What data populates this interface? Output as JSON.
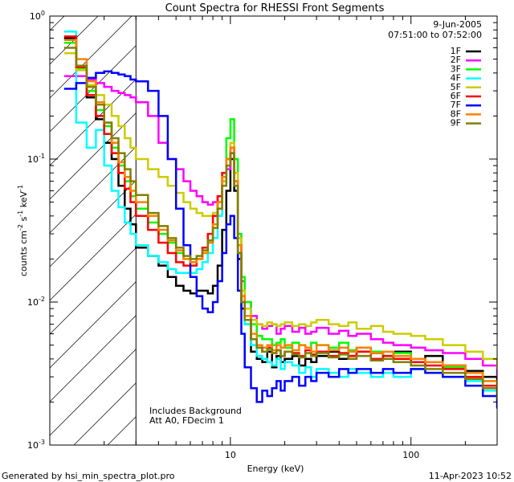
{
  "chart_data": {
    "type": "line",
    "title": "Count Spectra for RHESSI Front Segments",
    "xlabel": "Energy (keV)",
    "ylabel_parts": [
      "counts cm",
      "-2",
      " s",
      "-1",
      " keV",
      "-1"
    ],
    "x_scale": "log",
    "y_scale": "log",
    "xlim": [
      1.0,
      300
    ],
    "ylim": [
      0.001,
      1.0
    ],
    "x_ticks": [
      {
        "value": 10,
        "label": "10"
      },
      {
        "value": 100,
        "label": "100"
      }
    ],
    "y_ticks": [
      {
        "value": 1.0,
        "label": "10",
        "exp": "0"
      },
      {
        "value": 0.1,
        "label": "10",
        "exp": "-1"
      },
      {
        "value": 0.01,
        "label": "10",
        "exp": "-2"
      },
      {
        "value": 0.001,
        "label": "10",
        "exp": "-3"
      }
    ],
    "hatch_region_max_kev": 3.0,
    "annotations": {
      "date": "9-Jun-2005",
      "time_range": "07:51:00 to 07:52:00",
      "note1": "Includes Background",
      "note2": "Att A0, FDecim 1"
    },
    "footer_left": "Generated by hsi_min_spectra_plot.pro",
    "footer_right": "11-Apr-2023 10:52",
    "series": [
      {
        "name": "1F",
        "color": "#000000",
        "x": [
          1.2,
          1.4,
          1.6,
          1.8,
          2.0,
          2.2,
          2.4,
          2.6,
          2.8,
          3.0,
          3.5,
          4,
          4.5,
          5,
          5.5,
          6,
          6.5,
          7,
          7.5,
          8,
          8.5,
          9,
          9.5,
          10,
          10.5,
          11,
          11.5,
          12,
          13,
          14,
          15,
          16,
          17,
          18,
          19,
          20,
          22,
          24,
          26,
          28,
          30,
          35,
          40,
          45,
          50,
          60,
          70,
          80,
          100,
          120,
          150,
          200,
          250,
          300
        ],
        "y": [
          0.7,
          0.42,
          0.27,
          0.19,
          0.13,
          0.1,
          0.065,
          0.045,
          0.035,
          0.024,
          0.021,
          0.018,
          0.015,
          0.013,
          0.012,
          0.0115,
          0.012,
          0.012,
          0.0115,
          0.013,
          0.018,
          0.032,
          0.06,
          0.1,
          0.06,
          0.02,
          0.009,
          0.007,
          0.0045,
          0.004,
          0.0038,
          0.0045,
          0.0035,
          0.0042,
          0.0038,
          0.004,
          0.0042,
          0.0036,
          0.004,
          0.0038,
          0.0042,
          0.0045,
          0.004,
          0.0042,
          0.0048,
          0.0044,
          0.004,
          0.0045,
          0.004,
          0.0042,
          0.0036,
          0.0033,
          0.003,
          0.0022
        ]
      },
      {
        "name": "2F",
        "color": "#ff00ff",
        "x": [
          1.2,
          1.4,
          1.6,
          1.8,
          2.0,
          2.2,
          2.4,
          2.6,
          2.8,
          3.0,
          3.5,
          4,
          4.5,
          5,
          5.5,
          6,
          6.5,
          7,
          7.5,
          8,
          8.5,
          9,
          9.5,
          10,
          10.5,
          11,
          11.5,
          12,
          13,
          14,
          15,
          16,
          17,
          18,
          19,
          20,
          22,
          24,
          26,
          28,
          30,
          35,
          40,
          45,
          50,
          60,
          70,
          80,
          100,
          120,
          150,
          200,
          250,
          300
        ],
        "y": [
          0.38,
          0.38,
          0.36,
          0.34,
          0.32,
          0.3,
          0.29,
          0.28,
          0.27,
          0.25,
          0.2,
          0.13,
          0.1,
          0.085,
          0.07,
          0.06,
          0.055,
          0.05,
          0.048,
          0.05,
          0.055,
          0.07,
          0.085,
          0.11,
          0.08,
          0.03,
          0.014,
          0.01,
          0.008,
          0.007,
          0.0065,
          0.0068,
          0.007,
          0.006,
          0.0065,
          0.0068,
          0.0062,
          0.0066,
          0.006,
          0.0062,
          0.0066,
          0.006,
          0.0063,
          0.0058,
          0.006,
          0.0055,
          0.0052,
          0.005,
          0.0048,
          0.0046,
          0.0044,
          0.004,
          0.0036,
          0.003
        ]
      },
      {
        "name": "3F",
        "color": "#00ff00",
        "x": [
          1.2,
          1.4,
          1.6,
          1.8,
          2.0,
          2.2,
          2.4,
          2.6,
          2.8,
          3.0,
          3.5,
          4,
          4.5,
          5,
          5.5,
          6,
          6.5,
          7,
          7.5,
          8,
          8.5,
          9,
          9.5,
          10,
          10.5,
          11,
          11.5,
          12,
          13,
          14,
          15,
          16,
          17,
          18,
          19,
          20,
          22,
          24,
          26,
          28,
          30,
          35,
          40,
          45,
          50,
          60,
          70,
          80,
          100,
          120,
          150,
          200,
          250,
          300
        ],
        "y": [
          0.65,
          0.43,
          0.3,
          0.22,
          0.17,
          0.12,
          0.09,
          0.07,
          0.055,
          0.045,
          0.036,
          0.03,
          0.026,
          0.022,
          0.02,
          0.019,
          0.02,
          0.022,
          0.026,
          0.035,
          0.05,
          0.08,
          0.14,
          0.19,
          0.1,
          0.03,
          0.015,
          0.01,
          0.007,
          0.0058,
          0.0055,
          0.0055,
          0.005,
          0.0052,
          0.0055,
          0.0048,
          0.0052,
          0.005,
          0.0048,
          0.0052,
          0.005,
          0.0048,
          0.0052,
          0.0046,
          0.0048,
          0.0045,
          0.0042,
          0.0044,
          0.004,
          0.0038,
          0.0035,
          0.0032,
          0.0028,
          0.0024
        ]
      },
      {
        "name": "4F",
        "color": "#00ffff",
        "x": [
          1.2,
          1.4,
          1.6,
          1.8,
          2.0,
          2.2,
          2.4,
          2.6,
          2.8,
          3.0,
          3.5,
          4,
          4.5,
          5,
          5.5,
          6,
          6.5,
          7,
          7.5,
          8,
          8.5,
          9,
          9.5,
          10,
          10.5,
          11,
          11.5,
          12,
          13,
          14,
          15,
          16,
          17,
          18,
          19,
          20,
          22,
          24,
          26,
          28,
          30,
          35,
          40,
          45,
          50,
          60,
          70,
          80,
          100,
          120,
          150,
          200,
          250,
          300
        ],
        "y": [
          0.78,
          0.18,
          0.12,
          0.16,
          0.09,
          0.06,
          0.046,
          0.036,
          0.03,
          0.025,
          0.021,
          0.019,
          0.017,
          0.016,
          0.016,
          0.016,
          0.017,
          0.019,
          0.022,
          0.028,
          0.04,
          0.065,
          0.1,
          0.12,
          0.07,
          0.022,
          0.01,
          0.007,
          0.005,
          0.0042,
          0.004,
          0.0038,
          0.0036,
          0.004,
          0.0034,
          0.0038,
          0.0036,
          0.0032,
          0.0035,
          0.003,
          0.0034,
          0.0032,
          0.003,
          0.0034,
          0.0032,
          0.003,
          0.0032,
          0.003,
          0.0034,
          0.0032,
          0.003,
          0.0028,
          0.0024,
          0.002
        ]
      },
      {
        "name": "5F",
        "color": "#cccc00",
        "x": [
          1.2,
          1.4,
          1.6,
          1.8,
          2.0,
          2.2,
          2.4,
          2.6,
          2.8,
          3.0,
          3.5,
          4,
          4.5,
          5,
          5.5,
          6,
          6.5,
          7,
          7.5,
          8,
          8.5,
          9,
          9.5,
          10,
          10.5,
          11,
          11.5,
          12,
          13,
          14,
          15,
          16,
          17,
          18,
          19,
          20,
          22,
          24,
          26,
          28,
          30,
          35,
          40,
          45,
          50,
          60,
          70,
          80,
          100,
          120,
          150,
          200,
          250,
          300
        ],
        "y": [
          0.55,
          0.42,
          0.33,
          0.28,
          0.24,
          0.2,
          0.17,
          0.14,
          0.12,
          0.1,
          0.085,
          0.075,
          0.065,
          0.058,
          0.05,
          0.045,
          0.042,
          0.04,
          0.04,
          0.042,
          0.05,
          0.07,
          0.1,
          0.13,
          0.08,
          0.028,
          0.012,
          0.009,
          0.0075,
          0.007,
          0.0068,
          0.0072,
          0.007,
          0.0068,
          0.007,
          0.0072,
          0.0068,
          0.007,
          0.0068,
          0.0072,
          0.0075,
          0.007,
          0.0068,
          0.0072,
          0.0065,
          0.0068,
          0.0062,
          0.006,
          0.0058,
          0.0055,
          0.005,
          0.0045,
          0.004,
          0.0034
        ]
      },
      {
        "name": "6F",
        "color": "#ff0000",
        "x": [
          1.2,
          1.4,
          1.6,
          1.8,
          2.0,
          2.2,
          2.4,
          2.6,
          2.8,
          3.0,
          3.5,
          4,
          4.5,
          5,
          5.5,
          6,
          6.5,
          7,
          7.5,
          8,
          8.5,
          9,
          9.5,
          10,
          10.5,
          11,
          11.5,
          12,
          13,
          14,
          15,
          16,
          17,
          18,
          19,
          20,
          22,
          24,
          26,
          28,
          30,
          35,
          40,
          45,
          50,
          60,
          70,
          80,
          100,
          120,
          150,
          200,
          250,
          300
        ],
        "y": [
          0.72,
          0.44,
          0.28,
          0.2,
          0.15,
          0.11,
          0.08,
          0.062,
          0.05,
          0.04,
          0.032,
          0.026,
          0.022,
          0.019,
          0.018,
          0.018,
          0.02,
          0.024,
          0.03,
          0.04,
          0.055,
          0.08,
          0.1,
          0.12,
          0.07,
          0.025,
          0.011,
          0.008,
          0.0055,
          0.0048,
          0.0045,
          0.0048,
          0.0044,
          0.0046,
          0.0042,
          0.0045,
          0.0044,
          0.0042,
          0.0046,
          0.0043,
          0.0045,
          0.0042,
          0.0044,
          0.0042,
          0.0045,
          0.004,
          0.0042,
          0.004,
          0.0038,
          0.0036,
          0.0034,
          0.003,
          0.0026,
          0.0022
        ]
      },
      {
        "name": "7F",
        "color": "#0000ff",
        "x": [
          1.2,
          1.4,
          1.6,
          1.8,
          2.0,
          2.2,
          2.4,
          2.6,
          2.8,
          3.0,
          3.5,
          4,
          4.5,
          5,
          5.5,
          6,
          6.5,
          7,
          7.5,
          8,
          8.5,
          9,
          9.5,
          10,
          10.5,
          11,
          11.5,
          12,
          13,
          14,
          15,
          16,
          17,
          18,
          19,
          20,
          22,
          24,
          26,
          28,
          30,
          35,
          40,
          45,
          50,
          60,
          70,
          80,
          100,
          120,
          150,
          200,
          250,
          300
        ],
        "y": [
          0.31,
          0.34,
          0.37,
          0.4,
          0.41,
          0.4,
          0.39,
          0.38,
          0.36,
          0.35,
          0.3,
          0.2,
          0.1,
          0.045,
          0.025,
          0.015,
          0.011,
          0.009,
          0.0085,
          0.01,
          0.014,
          0.022,
          0.035,
          0.04,
          0.028,
          0.012,
          0.006,
          0.0035,
          0.0025,
          0.002,
          0.0024,
          0.0022,
          0.0025,
          0.0028,
          0.0024,
          0.0028,
          0.003,
          0.0026,
          0.003,
          0.0028,
          0.0032,
          0.003,
          0.0034,
          0.0032,
          0.0034,
          0.0032,
          0.0034,
          0.0032,
          0.0034,
          0.0032,
          0.003,
          0.0026,
          0.0022,
          0.0018
        ]
      },
      {
        "name": "8F",
        "color": "#ff8000",
        "x": [
          1.2,
          1.4,
          1.6,
          1.8,
          2.0,
          2.2,
          2.4,
          2.6,
          2.8,
          3.0,
          3.5,
          4,
          4.5,
          5,
          5.5,
          6,
          6.5,
          7,
          7.5,
          8,
          8.5,
          9,
          9.5,
          10,
          10.5,
          11,
          11.5,
          12,
          13,
          14,
          15,
          16,
          17,
          18,
          19,
          20,
          22,
          24,
          26,
          28,
          30,
          35,
          40,
          45,
          50,
          60,
          70,
          80,
          100,
          120,
          150,
          200,
          250,
          300
        ],
        "y": [
          0.68,
          0.5,
          0.35,
          0.25,
          0.18,
          0.13,
          0.095,
          0.075,
          0.06,
          0.05,
          0.04,
          0.032,
          0.027,
          0.023,
          0.02,
          0.019,
          0.02,
          0.022,
          0.026,
          0.035,
          0.05,
          0.075,
          0.1,
          0.12,
          0.07,
          0.025,
          0.011,
          0.008,
          0.006,
          0.005,
          0.0048,
          0.005,
          0.0046,
          0.005,
          0.0048,
          0.005,
          0.0046,
          0.005,
          0.0048,
          0.0045,
          0.005,
          0.0046,
          0.0048,
          0.0045,
          0.0048,
          0.0044,
          0.0045,
          0.0042,
          0.004,
          0.0038,
          0.0036,
          0.0032,
          0.0028,
          0.0024
        ]
      },
      {
        "name": "9F",
        "color": "#808000",
        "x": [
          1.2,
          1.4,
          1.6,
          1.8,
          2.0,
          2.2,
          2.4,
          2.6,
          2.8,
          3.0,
          3.5,
          4,
          4.5,
          5,
          5.5,
          6,
          6.5,
          7,
          7.5,
          8,
          8.5,
          9,
          9.5,
          10,
          10.5,
          11,
          11.5,
          12,
          13,
          14,
          15,
          16,
          17,
          18,
          19,
          20,
          22,
          24,
          26,
          28,
          30,
          35,
          40,
          45,
          50,
          60,
          70,
          80,
          100,
          120,
          150,
          200,
          250,
          300
        ],
        "y": [
          0.6,
          0.45,
          0.32,
          0.24,
          0.18,
          0.14,
          0.11,
          0.085,
          0.07,
          0.056,
          0.042,
          0.034,
          0.028,
          0.024,
          0.021,
          0.02,
          0.021,
          0.023,
          0.027,
          0.033,
          0.045,
          0.065,
          0.09,
          0.11,
          0.065,
          0.022,
          0.01,
          0.0075,
          0.0055,
          0.0048,
          0.0045,
          0.0047,
          0.0044,
          0.0046,
          0.0042,
          0.0045,
          0.0043,
          0.0041,
          0.0044,
          0.0042,
          0.0044,
          0.0041,
          0.0043,
          0.004,
          0.0042,
          0.0039,
          0.004,
          0.0038,
          0.0036,
          0.0034,
          0.0032,
          0.0029,
          0.0025,
          0.0021
        ]
      }
    ]
  }
}
